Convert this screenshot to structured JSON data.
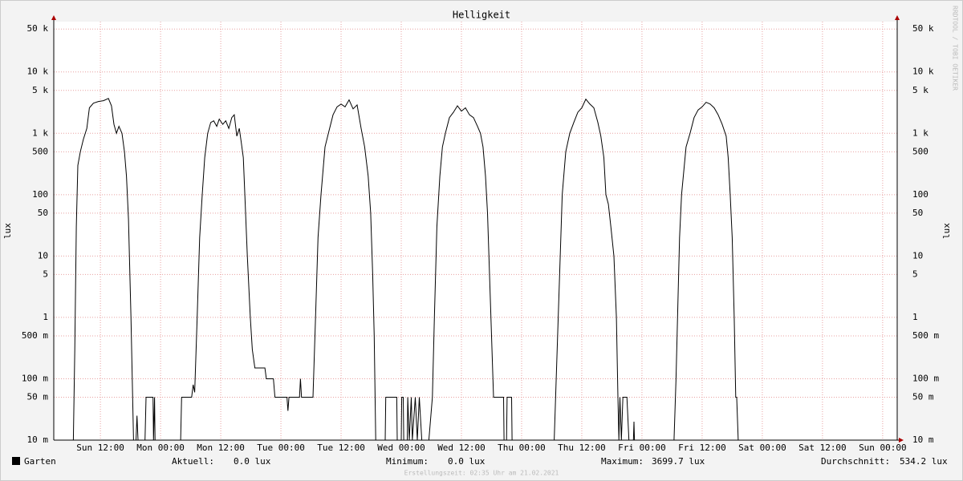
{
  "chart_data": {
    "type": "line",
    "title": "Helligkeit",
    "ylabel": "lux",
    "watermark": "RRDTOOL / TOBI OETIKER",
    "log_y": true,
    "grid": true,
    "ylim": [
      0.01,
      66000
    ],
    "yticks": [
      {
        "value": 0.01,
        "label": "10 m"
      },
      {
        "value": 0.05,
        "label": "50 m"
      },
      {
        "value": 0.1,
        "label": "100 m"
      },
      {
        "value": 0.5,
        "label": "500 m"
      },
      1,
      5,
      10,
      50,
      100,
      500,
      {
        "value": 1000,
        "label": "1 k"
      },
      {
        "value": 5000,
        "label": "5 k"
      },
      {
        "value": 10000,
        "label": "10 k"
      },
      {
        "value": 50000,
        "label": "50 k"
      }
    ],
    "xlim": [
      2.7,
      170.9
    ],
    "xticks": [
      {
        "value": 12,
        "label": "Sun 12:00"
      },
      {
        "value": 24,
        "label": "Mon 00:00"
      },
      {
        "value": 36,
        "label": "Mon 12:00"
      },
      {
        "value": 48,
        "label": "Tue 00:00"
      },
      {
        "value": 60,
        "label": "Tue 12:00"
      },
      {
        "value": 72,
        "label": "Wed 00:00"
      },
      {
        "value": 84,
        "label": "Wed 12:00"
      },
      {
        "value": 96,
        "label": "Thu 00:00"
      },
      {
        "value": 108,
        "label": "Thu 12:00"
      },
      {
        "value": 120,
        "label": "Fri 00:00"
      },
      {
        "value": 132,
        "label": "Fri 12:00"
      },
      {
        "value": 144,
        "label": "Sat 00:00"
      },
      {
        "value": 156,
        "label": "Sat 12:00"
      },
      {
        "value": 168,
        "label": "Sun 00:00"
      }
    ],
    "x": [
      2.7,
      6.6,
      6.9,
      7.2,
      7.5,
      8,
      8.6,
      9.3,
      9.8,
      10.6,
      11.6,
      12.6,
      13.6,
      14.2,
      14.7,
      15.2,
      15.7,
      16.3,
      16.8,
      17.2,
      17.6,
      18.1,
      18.6,
      19.1,
      19.3,
      19.5,
      20.9,
      21.1,
      22.5,
      22.6,
      22.8,
      22.9,
      28,
      28.2,
      30.2,
      30.5,
      30.8,
      31.3,
      31.8,
      32.3,
      32.8,
      33.4,
      34,
      34.6,
      35.2,
      35.7,
      36.4,
      37,
      37.6,
      38.2,
      38.7,
      39.2,
      39.7,
      40.1,
      40.5,
      40.8,
      41.3,
      41.9,
      42.3,
      42.8,
      44.8,
      45.1,
      46.5,
      46.8,
      49.2,
      49.4,
      49.6,
      51.7,
      51.9,
      52.1,
      54.4,
      54.9,
      55.4,
      56,
      56.8,
      57.6,
      58.4,
      59.2,
      60,
      60.8,
      61.6,
      62.4,
      63.2,
      64,
      64.7,
      65.4,
      65.9,
      66.3,
      66.6,
      66.9,
      68.8,
      68.9,
      71.1,
      71.2,
      72,
      72.1,
      72.4,
      72.5,
      73.2,
      73.3,
      73.6,
      74,
      74.2,
      74.8,
      75.2,
      75.6,
      76.1,
      77.5,
      78.2,
      78.6,
      79.1,
      79.7,
      80.2,
      80.8,
      81.6,
      82.4,
      83.2,
      84,
      84.8,
      85.6,
      86.4,
      87.2,
      87.8,
      88.3,
      88.8,
      89.2,
      89.6,
      90,
      90.4,
      92.4,
      92.5,
      93,
      93.1,
      94,
      94.1,
      102.5,
      102.9,
      103.3,
      103.7,
      104.1,
      104.8,
      105.6,
      106.4,
      107.2,
      108,
      108.8,
      109.6,
      110.4,
      111.2,
      111.8,
      112.4,
      112.8,
      113.3,
      113.8,
      114.4,
      114.9,
      115.2,
      115.4,
      115.6,
      115.9,
      116.2,
      117,
      117.4,
      118.3,
      118.4,
      118.5,
      126.4,
      126.8,
      127.1,
      127.5,
      127.9,
      128.8,
      129.6,
      130.4,
      131.2,
      132,
      132.8,
      133.6,
      134.4,
      135.2,
      136,
      136.8,
      137.2,
      137.6,
      138,
      138.4,
      138.7,
      138.9,
      139.2,
      170.9
    ],
    "series": [
      {
        "name": "Garten",
        "color": "#000000",
        "values": [
          0.01,
          0.01,
          0.3,
          30,
          300,
          500,
          800,
          1200,
          2600,
          3100,
          3300,
          3400,
          3700,
          2800,
          1400,
          1000,
          1300,
          1000,
          500,
          200,
          40,
          1,
          0.01,
          0.01,
          0.025,
          0.01,
          0.01,
          0.05,
          0.05,
          0.01,
          0.05,
          0.01,
          0.01,
          0.05,
          0.05,
          0.08,
          0.06,
          1,
          20,
          100,
          400,
          1000,
          1500,
          1600,
          1300,
          1700,
          1400,
          1600,
          1200,
          1800,
          2000,
          900,
          1200,
          700,
          400,
          100,
          10,
          1,
          0.3,
          0.15,
          0.15,
          0.1,
          0.1,
          0.05,
          0.05,
          0.03,
          0.05,
          0.05,
          0.1,
          0.05,
          0.05,
          1,
          20,
          100,
          600,
          1100,
          2000,
          2700,
          3000,
          2700,
          3500,
          2500,
          2900,
          1200,
          600,
          200,
          50,
          5,
          0.5,
          0.01,
          0.01,
          0.05,
          0.05,
          0.01,
          0.01,
          0.05,
          0.05,
          0.01,
          0.01,
          0.05,
          0.01,
          0.05,
          0.01,
          0.05,
          0.01,
          0.05,
          0.01,
          0.01,
          0.05,
          1,
          30,
          200,
          600,
          1000,
          1800,
          2200,
          2800,
          2300,
          2600,
          2000,
          1800,
          1300,
          1000,
          600,
          200,
          50,
          5,
          0.5,
          0.05,
          0.05,
          0.01,
          0.01,
          0.05,
          0.05,
          0.01,
          0.01,
          0.1,
          1,
          10,
          100,
          500,
          1000,
          1500,
          2200,
          2600,
          3600,
          3000,
          2600,
          1500,
          900,
          400,
          100,
          70,
          30,
          10,
          1,
          0.05,
          0.01,
          0.05,
          0.01,
          0.05,
          0.05,
          0.01,
          0.01,
          0.02,
          0.01,
          0.01,
          0.1,
          1,
          20,
          100,
          600,
          1000,
          1800,
          2400,
          2700,
          3200,
          3000,
          2600,
          2000,
          1400,
          900,
          400,
          100,
          20,
          1,
          0.05,
          0.05,
          0.01,
          0.01
        ]
      }
    ],
    "stats": [
      {
        "label": "Aktuell:",
        "value": "0.0 lux"
      },
      {
        "label": "Minimum:",
        "value": "0.0 lux"
      },
      {
        "label": "Maximum:",
        "value": "3699.7 lux"
      },
      {
        "label": "Durchschnitt:",
        "value": "534.2 lux"
      }
    ],
    "footer": "Erstellungszeit: 02:35 Uhr am 21.02.2021"
  }
}
